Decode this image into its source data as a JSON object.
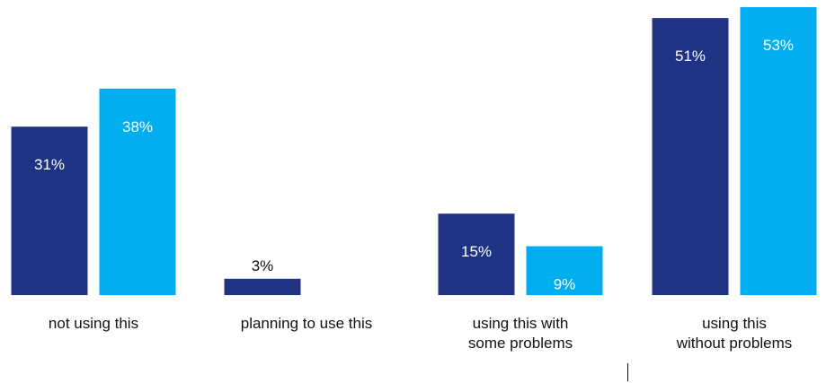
{
  "chart_data": {
    "type": "bar",
    "categories": [
      [
        "not using this"
      ],
      [
        "planning to use this"
      ],
      [
        "using this with",
        "some problems"
      ],
      [
        "using this",
        "without problems"
      ]
    ],
    "series": [
      {
        "values": [
          31,
          3,
          15,
          51
        ],
        "labels": [
          "31%",
          "3%",
          "15%",
          "51%"
        ],
        "color": "#1f3384"
      },
      {
        "values": [
          38,
          0,
          9,
          53
        ],
        "labels": [
          "38%",
          "",
          "9%",
          "53%"
        ],
        "color": "#00aeef"
      }
    ],
    "ylim": [
      0,
      53
    ],
    "grid": false,
    "legend": "none",
    "colors": {
      "dark_bar_text_inside": "#ffffff",
      "light_bar_text_inside": "#ffffff",
      "text_outside": "#111111"
    }
  }
}
